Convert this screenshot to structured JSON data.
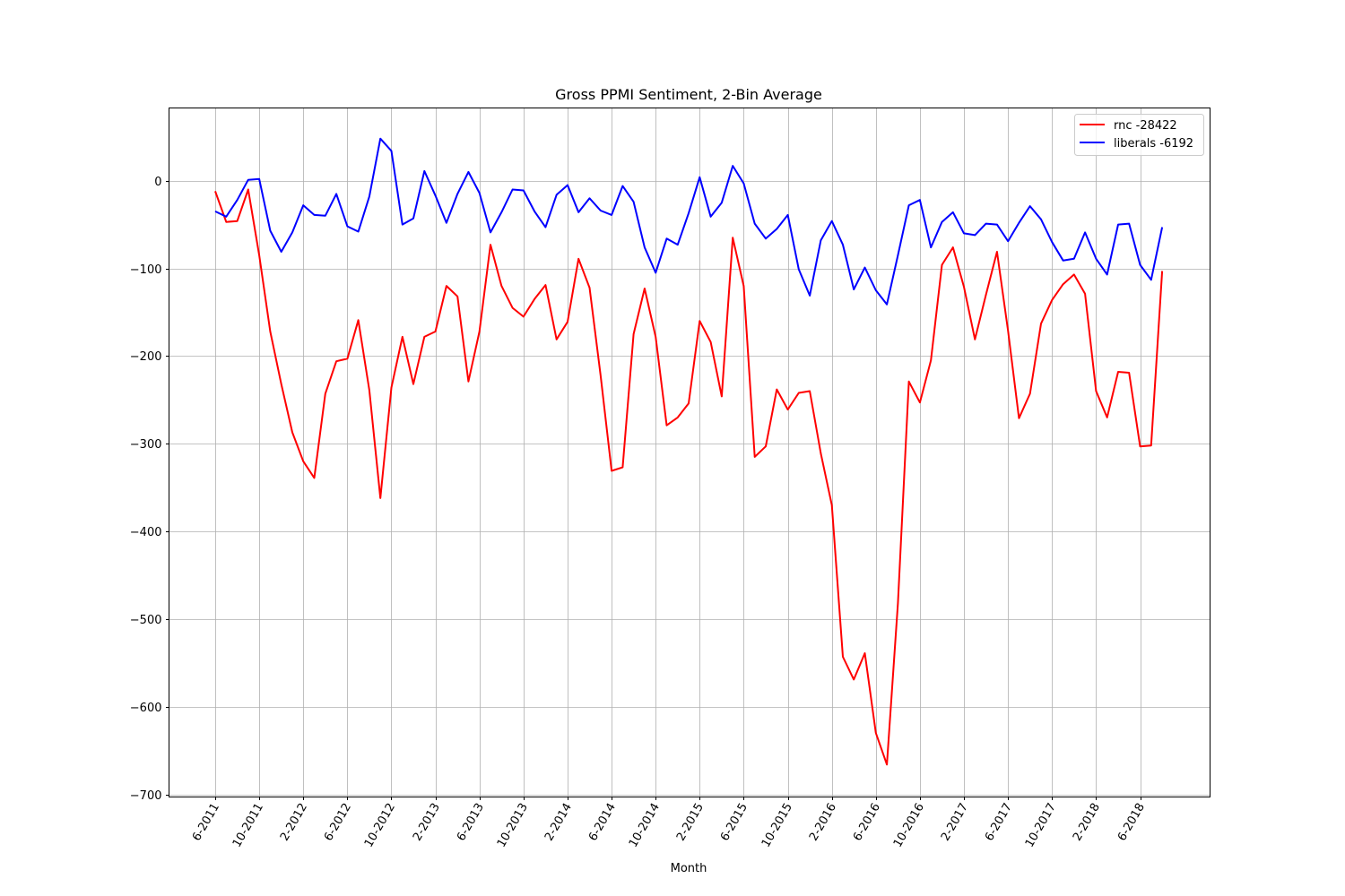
{
  "chart_data": {
    "type": "line",
    "title": "Gross PPMI Sentiment, 2-Bin Average",
    "xlabel": "Month",
    "ylabel": "",
    "x_tick_labels": [
      "6-2011",
      "10-2011",
      "2-2012",
      "6-2012",
      "10-2012",
      "2-2013",
      "6-2013",
      "10-2013",
      "2-2014",
      "6-2014",
      "10-2014",
      "2-2015",
      "6-2015",
      "10-2015",
      "2-2016",
      "6-2016",
      "10-2016",
      "2-2017",
      "6-2017",
      "10-2017",
      "2-2018",
      "6-2018"
    ],
    "y_ticks": [
      0,
      -100,
      -200,
      -300,
      -400,
      -500,
      -600,
      -700
    ],
    "y_tick_labels": [
      "0",
      "−100",
      "−200",
      "−300",
      "−400",
      "−500",
      "−600",
      "−700"
    ],
    "ylim": [
      -703,
      83
    ],
    "x_month_range": [
      "6-2011",
      "7-2018"
    ],
    "grid": true,
    "legend_position": "top-right",
    "series": [
      {
        "name": "rnc -28422",
        "color": "#ff0000",
        "values": [
          -12,
          -47,
          -46,
          -10,
          -85,
          -172,
          -232,
          -287,
          -320,
          -339,
          -243,
          -206,
          -203,
          -159,
          -239,
          -362,
          -236,
          -178,
          -232,
          -178,
          -172,
          -120,
          -132,
          -229,
          -172,
          -73,
          -120,
          -145,
          -155,
          -135,
          -119,
          -181,
          -161,
          -89,
          -122,
          -222,
          -331,
          -327,
          -175,
          -123,
          -178,
          -279,
          -270,
          -254,
          -160,
          -184,
          -246,
          -65,
          -120,
          -315,
          -303,
          -238,
          -261,
          -242,
          -240,
          -311,
          -370,
          -543,
          -569,
          -539,
          -630,
          -666,
          -482,
          -229,
          -253,
          -205,
          -96,
          -76,
          -121,
          -181,
          -130,
          -81,
          -171,
          -271,
          -243,
          -163,
          -136,
          -118,
          -107,
          -129,
          -240,
          -270,
          -218,
          -219,
          -303,
          -302,
          -103
        ]
      },
      {
        "name": "liberals -6192",
        "color": "#0000ff",
        "values": [
          -35,
          -41,
          -22,
          1,
          2,
          -57,
          -81,
          -59,
          -28,
          -39,
          -40,
          -15,
          -52,
          -58,
          -18,
          48,
          34,
          -50,
          -43,
          11,
          -17,
          -48,
          -15,
          10,
          -14,
          -59,
          -36,
          -10,
          -11,
          -35,
          -53,
          -16,
          -5,
          -36,
          -20,
          -34,
          -39,
          -6,
          -24,
          -76,
          -105,
          -66,
          -73,
          -37,
          4,
          -41,
          -25,
          17,
          -3,
          -49,
          -66,
          -55,
          -39,
          -101,
          -131,
          -68,
          -46,
          -73,
          -124,
          -99,
          -125,
          -141,
          -85,
          -28,
          -22,
          -76,
          -47,
          -36,
          -60,
          -62,
          -49,
          -50,
          -69,
          -48,
          -29,
          -44,
          -70,
          -91,
          -89,
          -59,
          -89,
          -107,
          -50,
          -49,
          -96,
          -113,
          -53
        ]
      }
    ]
  }
}
